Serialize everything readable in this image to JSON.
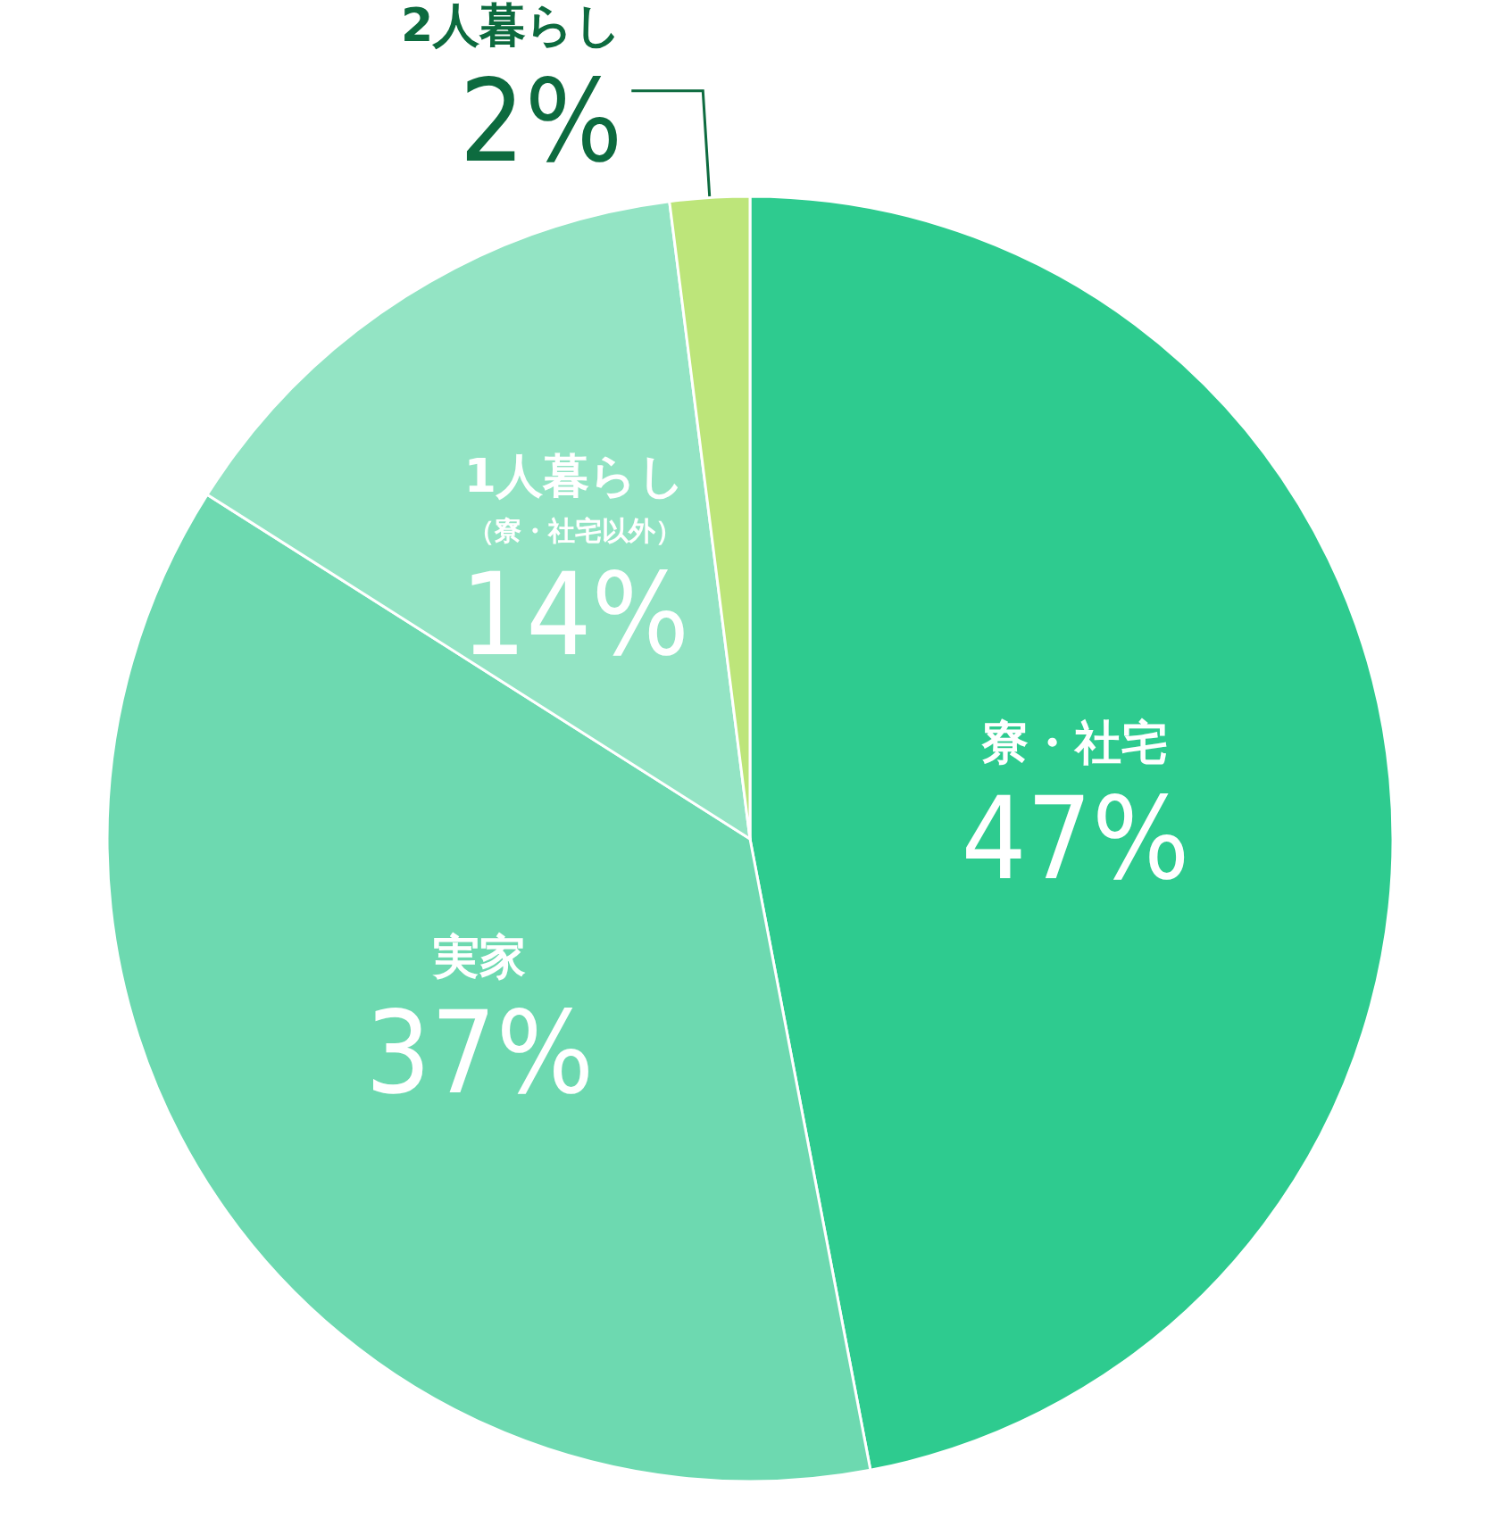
{
  "chart_data": {
    "type": "pie",
    "categories": [
      "寮・社宅",
      "実家",
      "1人暮らし（寮・社宅以外）",
      "2人暮らし"
    ],
    "values": [
      47,
      37,
      14,
      2
    ],
    "colors": [
      "#2ecb8f",
      "#6dd9b0",
      "#93e4c4",
      "#bde57a"
    ],
    "value_labels": [
      "47%",
      "37%",
      "14%",
      "2%"
    ],
    "legend": false
  }
}
